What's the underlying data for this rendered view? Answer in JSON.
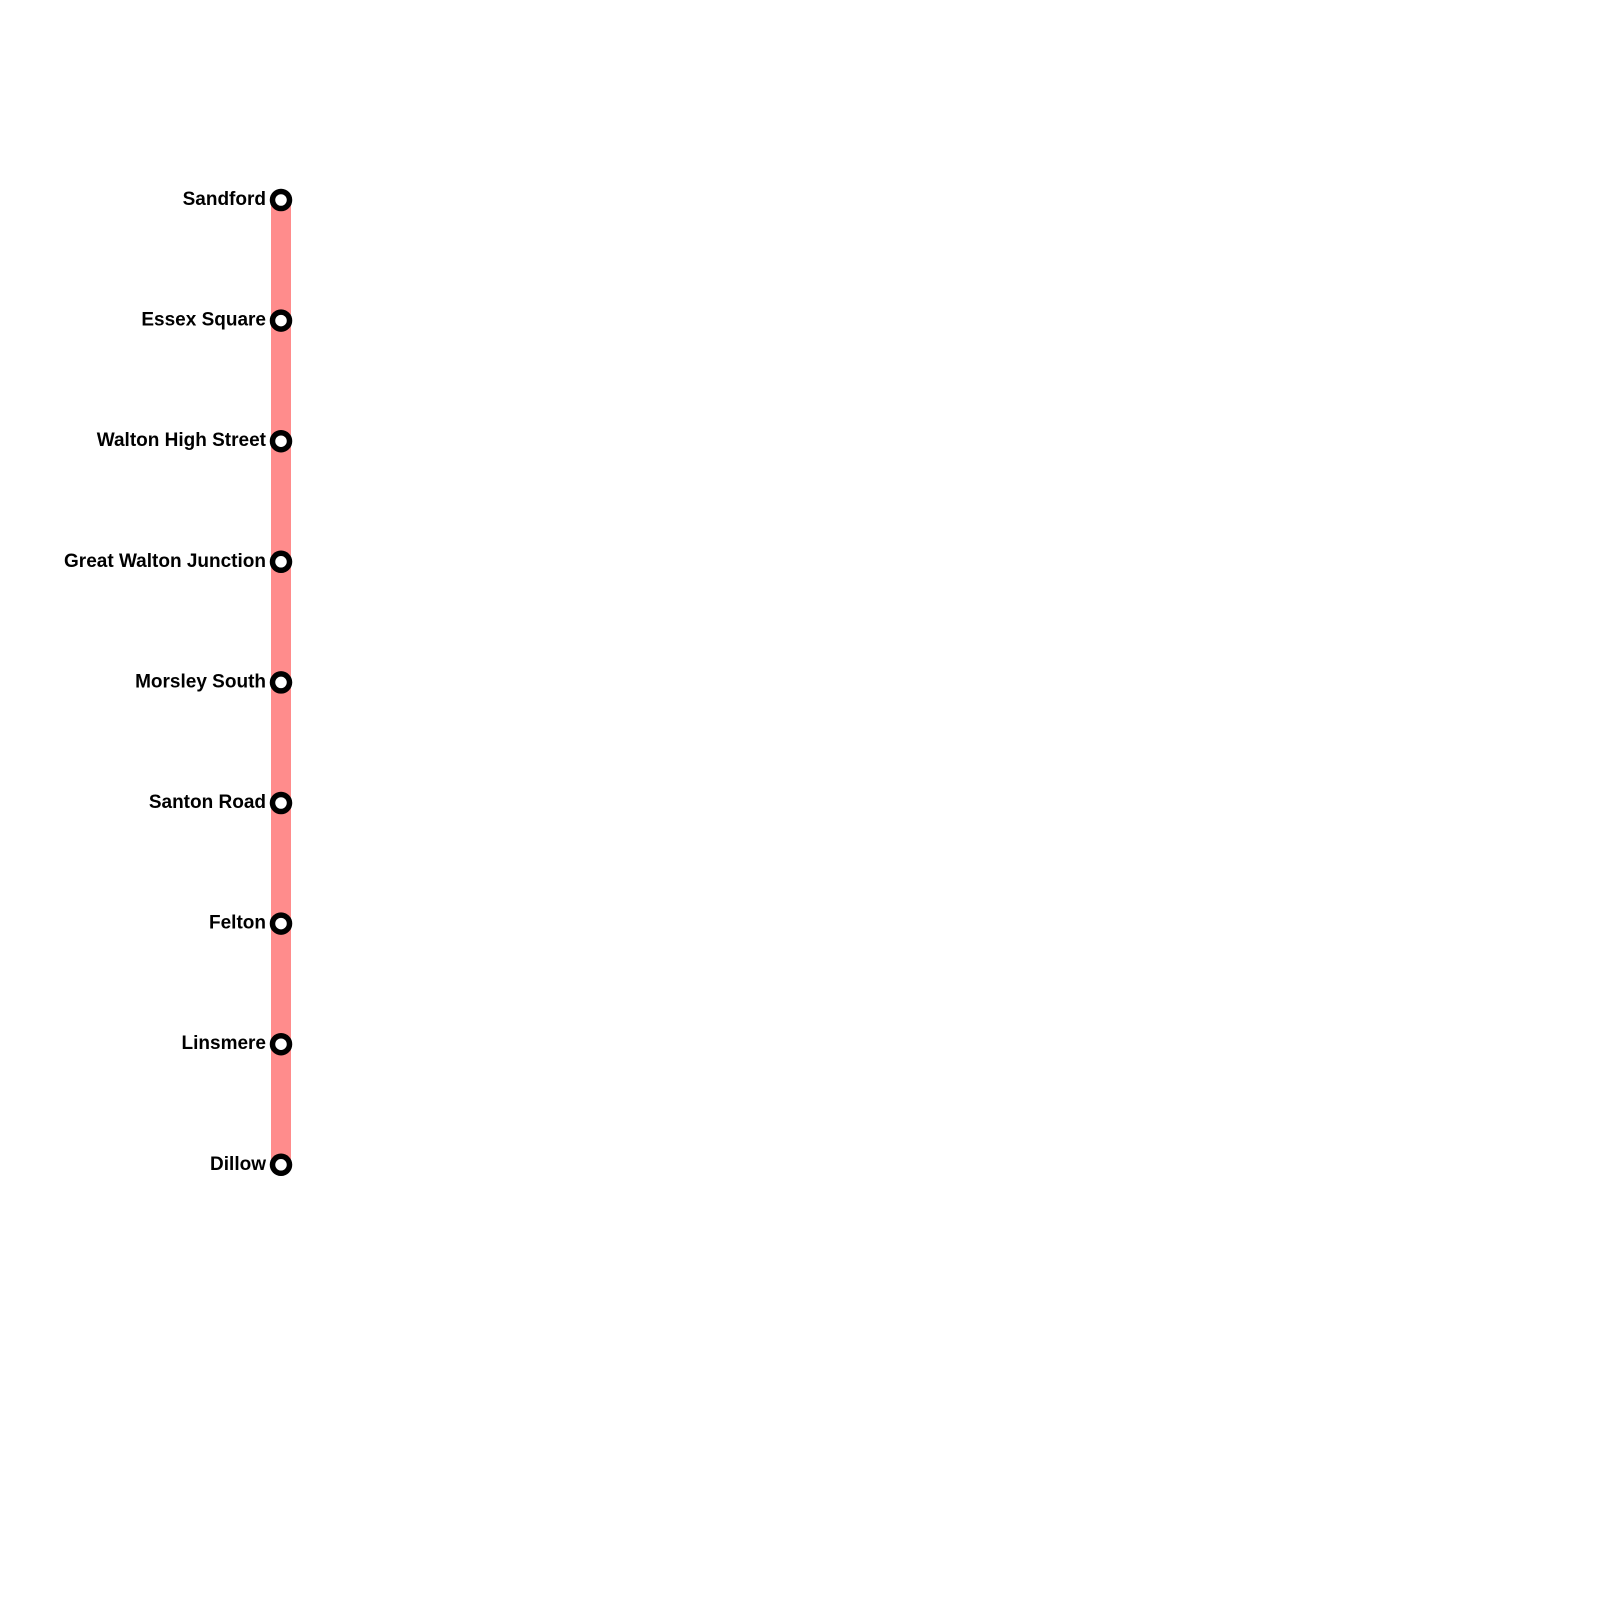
{
  "line": {
    "color": "#ff8c8c",
    "stations": [
      "Sandford",
      "Essex Square",
      "Walton High Street",
      "Great Walton Junction",
      "Morsley South",
      "Santon Road",
      "Felton",
      "Linsmere",
      "Dillow"
    ]
  },
  "station_marker": {
    "fill": "#ffffff",
    "stroke": "#000000"
  }
}
